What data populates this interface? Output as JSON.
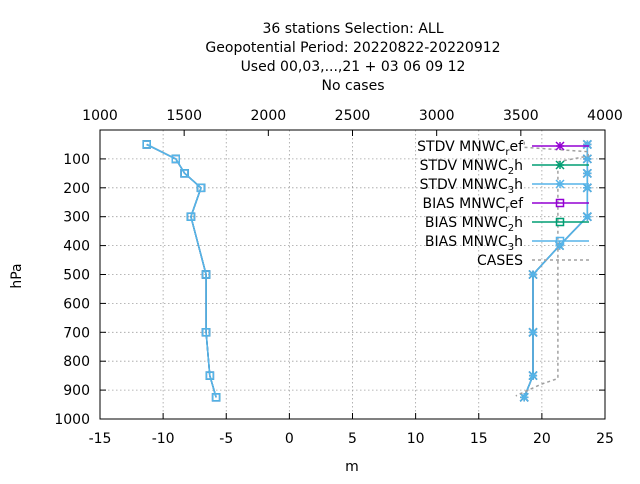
{
  "title_lines": [
    "36 stations Selection: ALL",
    "Geopotential  Period: 20220822-20220912",
    "Used  00,03,...,21  + 03 06 09 12",
    "No cases"
  ],
  "chart_data": {
    "type": "line",
    "xlabel": "m",
    "ylabel": "hPa",
    "xlim": [
      -15,
      25
    ],
    "ylim": [
      1000,
      0
    ],
    "x2lim": [
      1000,
      4000
    ],
    "x_ticks": [
      -15,
      -10,
      -5,
      0,
      5,
      10,
      15,
      20,
      25
    ],
    "x2_ticks": [
      1000,
      1500,
      2000,
      2500,
      3000,
      3500,
      4000
    ],
    "y_ticks": [
      100,
      200,
      300,
      400,
      500,
      600,
      700,
      800,
      900,
      1000
    ],
    "grid": true,
    "legend_position": "top-right",
    "series": [
      {
        "name": "STDV MNWC_ref",
        "name_main": "STDV MNWC",
        "name_sub": "r",
        "name_tail": "ef",
        "color": "#9400d3",
        "marker": "x-star",
        "axis": "x1",
        "points": [
          [
            23.6,
            50
          ],
          [
            23.6,
            100
          ],
          [
            23.6,
            150
          ],
          [
            23.6,
            200
          ],
          [
            23.6,
            300
          ],
          [
            21.4,
            400
          ],
          [
            19.3,
            500
          ],
          [
            19.3,
            700
          ],
          [
            19.3,
            850
          ],
          [
            18.6,
            925
          ]
        ]
      },
      {
        "name": "STDV MNWC_2h",
        "name_main": "STDV MNWC",
        "name_sub": "2",
        "name_tail": "h",
        "color": "#009e73",
        "marker": "x-star",
        "axis": "x1",
        "points": [
          [
            23.6,
            50
          ],
          [
            23.6,
            100
          ],
          [
            23.6,
            150
          ],
          [
            23.6,
            200
          ],
          [
            23.6,
            300
          ],
          [
            21.4,
            400
          ],
          [
            19.3,
            500
          ],
          [
            19.3,
            700
          ],
          [
            19.3,
            850
          ],
          [
            18.6,
            925
          ]
        ]
      },
      {
        "name": "STDV MNWC_3h",
        "name_main": "STDV MNWC",
        "name_sub": "3",
        "name_tail": "h",
        "color": "#56b4e9",
        "marker": "x-star",
        "axis": "x1",
        "points": [
          [
            23.6,
            50
          ],
          [
            23.6,
            100
          ],
          [
            23.6,
            150
          ],
          [
            23.6,
            200
          ],
          [
            23.6,
            300
          ],
          [
            21.4,
            400
          ],
          [
            19.3,
            500
          ],
          [
            19.3,
            700
          ],
          [
            19.3,
            850
          ],
          [
            18.6,
            925
          ]
        ]
      },
      {
        "name": "BIAS MNWC_ref",
        "name_main": "BIAS MNWC",
        "name_sub": "r",
        "name_tail": "ef",
        "color": "#9400d3",
        "marker": "square",
        "axis": "x1",
        "points": [
          [
            -11.3,
            50
          ],
          [
            -9,
            100
          ],
          [
            -8.3,
            150
          ],
          [
            -7,
            200
          ],
          [
            -7.8,
            300
          ],
          [
            -6.6,
            500
          ],
          [
            -6.6,
            700
          ],
          [
            -6.3,
            850
          ],
          [
            -5.8,
            925
          ]
        ]
      },
      {
        "name": "BIAS MNWC_2h",
        "name_main": "BIAS MNWC",
        "name_sub": "2",
        "name_tail": "h",
        "color": "#009e73",
        "marker": "square",
        "axis": "x1",
        "points": [
          [
            -11.3,
            50
          ],
          [
            -9,
            100
          ],
          [
            -8.3,
            150
          ],
          [
            -7,
            200
          ],
          [
            -7.8,
            300
          ],
          [
            -6.6,
            500
          ],
          [
            -6.6,
            700
          ],
          [
            -6.3,
            850
          ],
          [
            -5.8,
            925
          ]
        ]
      },
      {
        "name": "BIAS MNWC_3h",
        "name_main": "BIAS MNWC",
        "name_sub": "3",
        "name_tail": "h",
        "color": "#56b4e9",
        "marker": "square",
        "axis": "x1",
        "points": [
          [
            -11.3,
            50
          ],
          [
            -9,
            100
          ],
          [
            -8.3,
            150
          ],
          [
            -7,
            200
          ],
          [
            -7.8,
            300
          ],
          [
            -6.6,
            500
          ],
          [
            -6.6,
            700
          ],
          [
            -6.3,
            850
          ],
          [
            -5.8,
            925
          ]
        ]
      },
      {
        "name": "CASES",
        "name_main": "CASES",
        "name_sub": "",
        "name_tail": "",
        "color": "#a0a0a0",
        "marker": "none",
        "dashed": true,
        "axis": "x2",
        "points": [
          [
            3520,
            40
          ],
          [
            3520,
            60
          ],
          [
            3900,
            75
          ],
          [
            3900,
            90
          ],
          [
            3720,
            110
          ],
          [
            3720,
            200
          ],
          [
            3720,
            290
          ],
          [
            3720,
            310
          ],
          [
            3720,
            380
          ],
          [
            3720,
            500
          ],
          [
            3720,
            620
          ],
          [
            3720,
            740
          ],
          [
            3720,
            860
          ],
          [
            3620,
            880
          ],
          [
            3470,
            920
          ]
        ]
      }
    ]
  }
}
